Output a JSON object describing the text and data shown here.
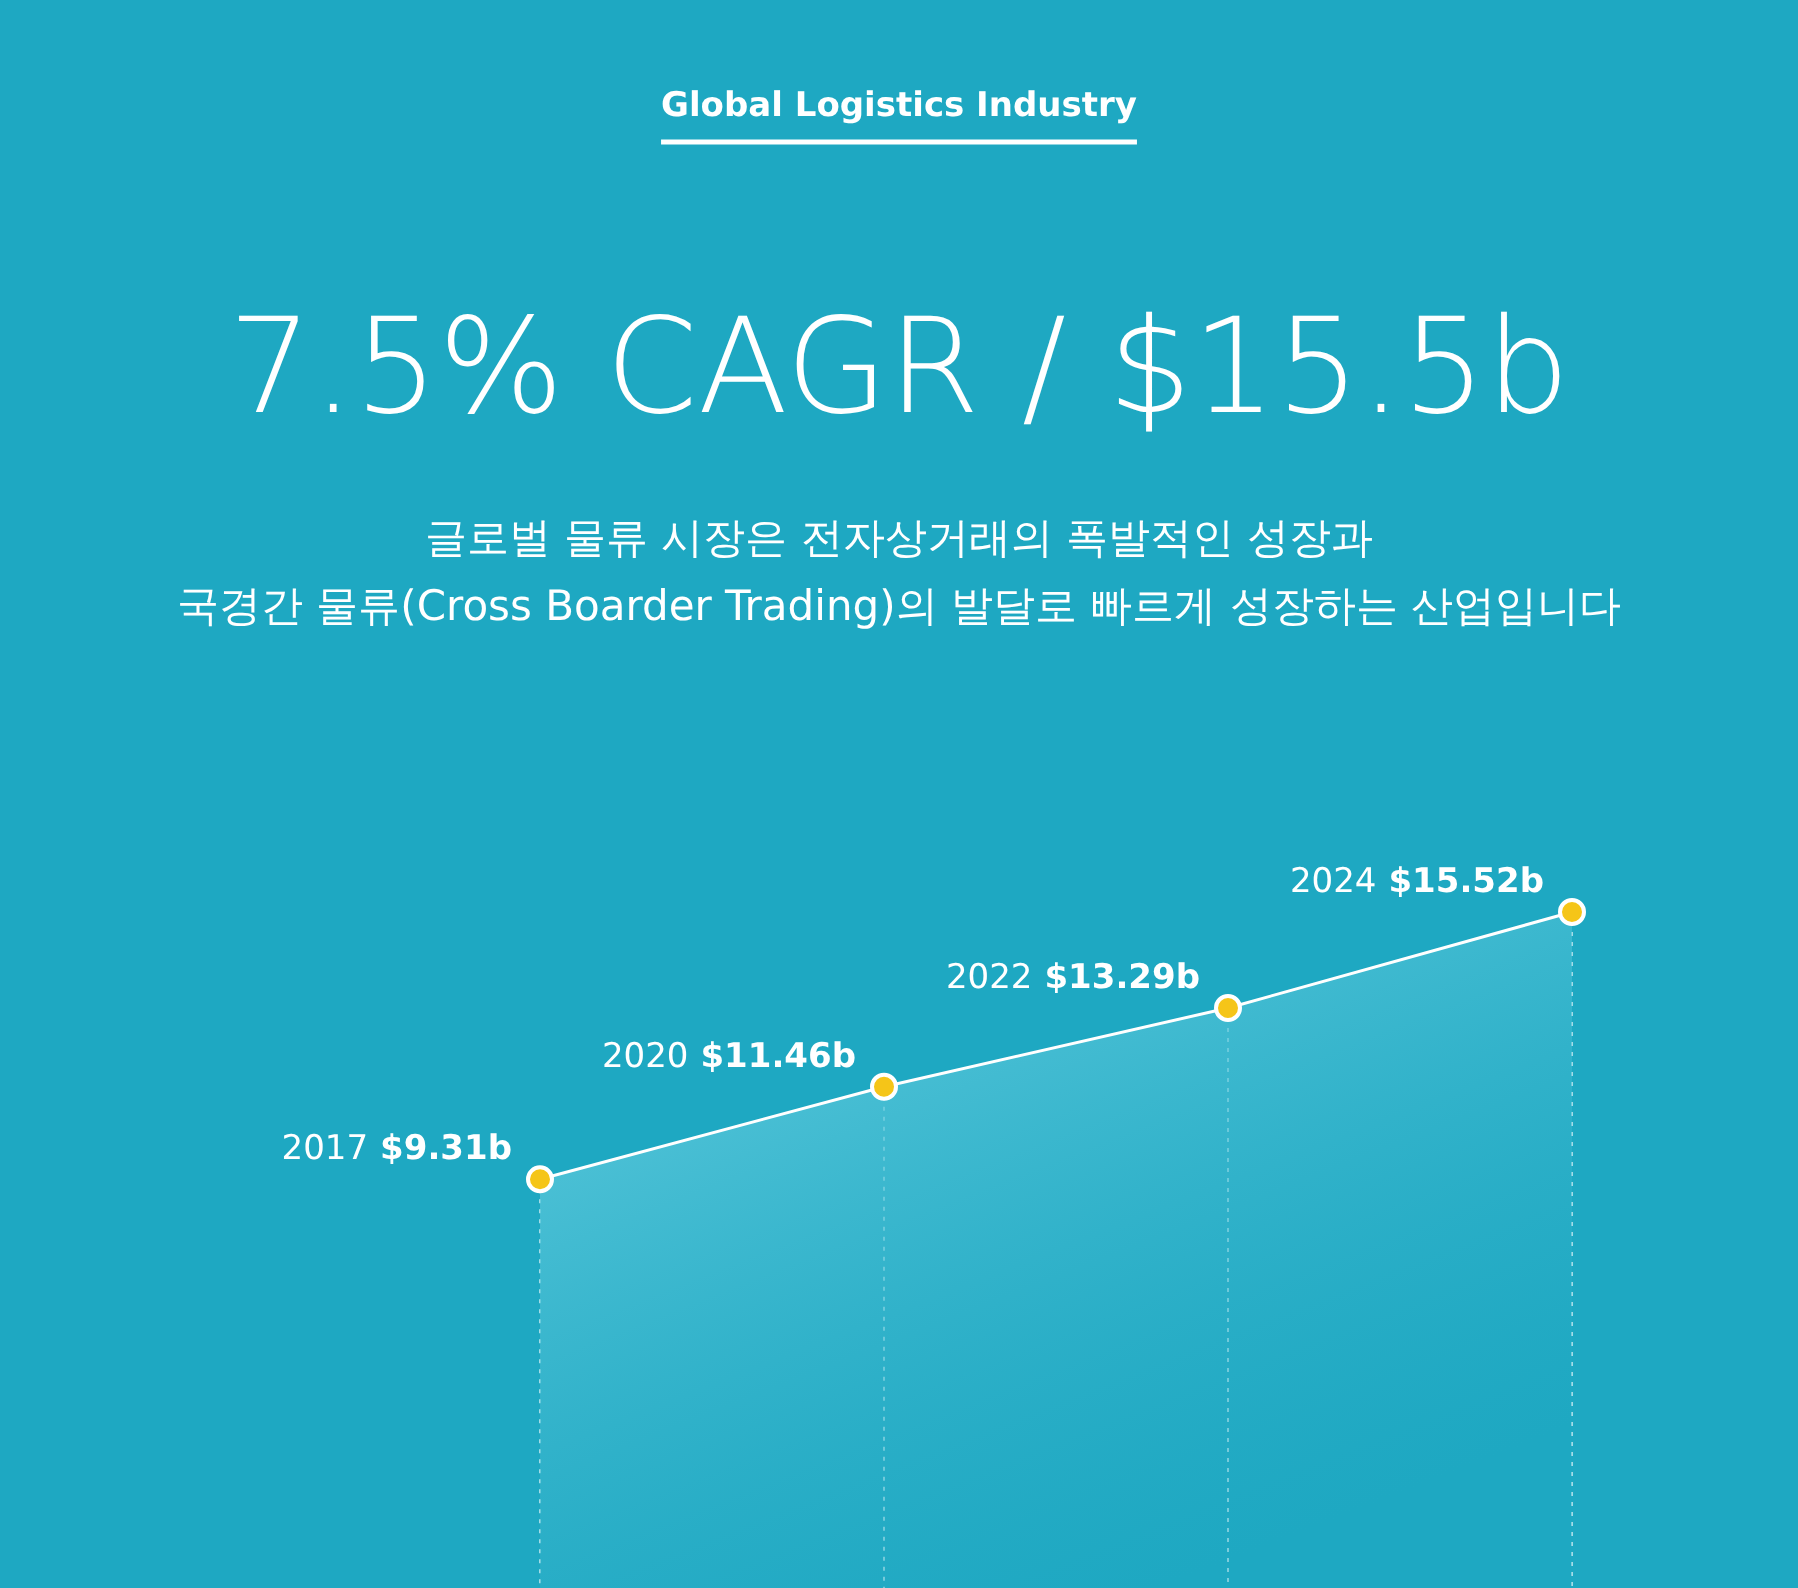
{
  "chart_data": {
    "type": "area",
    "title": "Global Logistics Industry",
    "subtitle": "7.5% CAGR / $15.5b",
    "annotations": [
      "글로벌 물류 시장은 전자상거래의 폭발적인 성장과",
      "국경간 물류(Cross Boarder Trading)의 발달로 빠르게 성장하는 산업입니다",
      "2017",
      "2020",
      "2022",
      "2024"
    ],
    "categories": [
      null,
      null,
      null,
      null
    ],
    "series": [
      {
        "color": "#ffffff",
        "values": [
          9.31,
          11.46,
          13.29,
          15.52
        ],
        "value_labels": [
          "$9.31b",
          "$11.46b",
          "$13.29b",
          "$15.52b"
        ]
      }
    ],
    "marker": "circle",
    "grid": "x"
  }
}
